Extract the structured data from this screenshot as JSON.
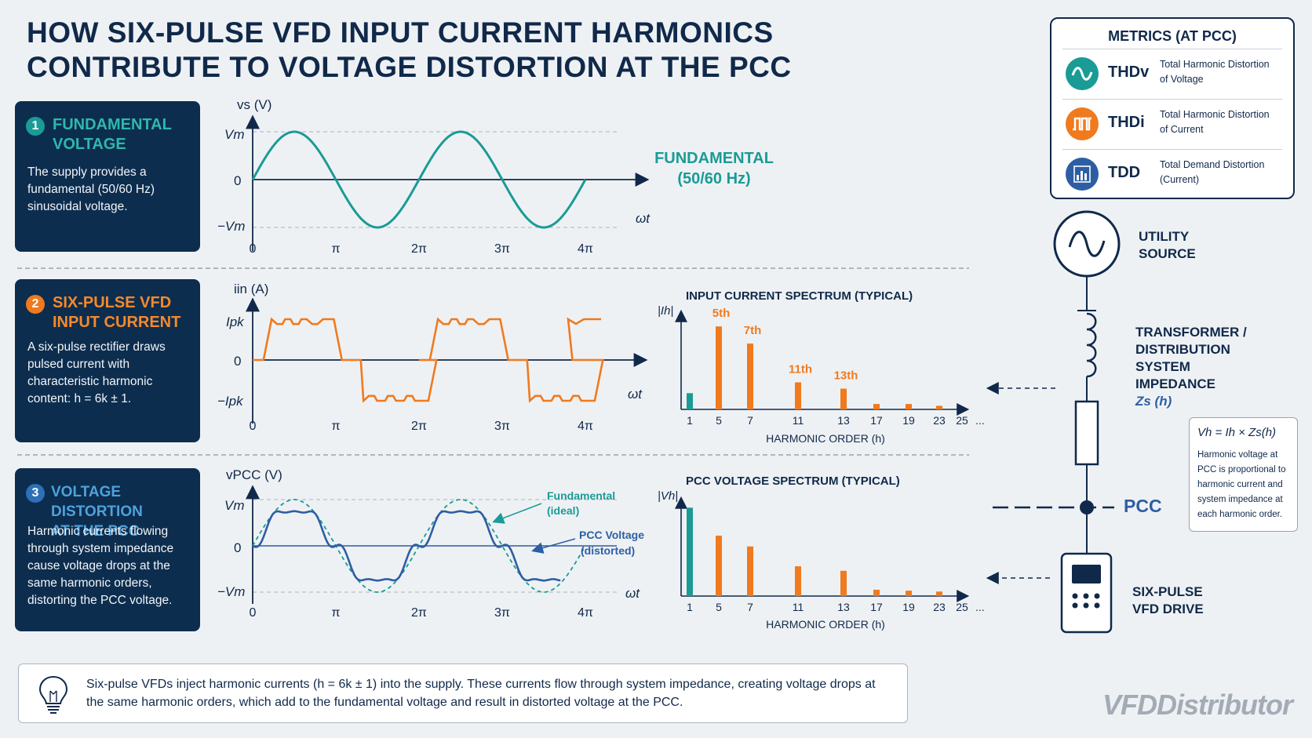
{
  "title_line1": "HOW SIX-PULSE VFD INPUT CURRENT HARMONICS",
  "title_line2": "CONTRIBUTE TO VOLTAGE DISTORTION AT THE PCC",
  "colors": {
    "navy": "#0d2d4e",
    "teal": "#1a9b95",
    "orange": "#f07a1e",
    "blue": "#2d5ea3"
  },
  "steps": [
    {
      "num": "1",
      "head1": "FUNDAMENTAL",
      "head2": "VOLTAGE",
      "body": "The supply provides a fundamental (50/60 Hz) sinusoidal voltage."
    },
    {
      "num": "2",
      "head1": "SIX-PULSE VFD",
      "head2": "INPUT CURRENT",
      "body": "A six-pulse rectifier draws pulsed current with characteristic harmonic content: h = 6k ± 1."
    },
    {
      "num": "3",
      "head1": "VOLTAGE DISTORTION",
      "head2": "AT THE PCC",
      "body": "Harmonic currents flowing through system impedance cause voltage drops at the same harmonic orders, distorting the PCC voltage."
    }
  ],
  "wave1": {
    "ylabel": "vs (V)",
    "top": "Vm",
    "zero": "0",
    "bottom": "−Vm",
    "xaxis": "ωt",
    "ticks": [
      "0",
      "π",
      "2π",
      "3π",
      "4π"
    ],
    "tag1": "FUNDAMENTAL",
    "tag2": "(50/60 Hz)"
  },
  "wave2": {
    "ylabel": "iin (A)",
    "top": "Ipk",
    "zero": "0",
    "bottom": "−Ipk",
    "xaxis": "ωt",
    "ticks": [
      "0",
      "π",
      "2π",
      "3π",
      "4π"
    ]
  },
  "wave3": {
    "ylabel": "vPCC (V)",
    "top": "Vm",
    "zero": "0",
    "bottom": "−Vm",
    "xaxis": "ωt",
    "ticks": [
      "0",
      "π",
      "2π",
      "3π",
      "4π"
    ],
    "legend_fund1": "Fundamental",
    "legend_fund2": "(ideal)",
    "legend_pcc1": "PCC Voltage",
    "legend_pcc2": "(distorted)"
  },
  "chart_data": [
    {
      "type": "bar",
      "title": "INPUT CURRENT SPECTRUM (TYPICAL)",
      "ylabel": "|Ih|",
      "xlabel": "HARMONIC ORDER (h)",
      "categories": [
        "1",
        "5",
        "7",
        "11",
        "13",
        "17",
        "19",
        "23",
        "25"
      ],
      "values": [
        0.18,
        0.92,
        0.73,
        0.3,
        0.23,
        0.06,
        0.06,
        0.04,
        0
      ],
      "bar_labels": [
        "",
        "5th",
        "7th",
        "11th",
        "13th",
        "",
        "",
        "",
        ""
      ],
      "colors": [
        "#1a9b95",
        "#f07a1e",
        "#f07a1e",
        "#f07a1e",
        "#f07a1e",
        "#f07a1e",
        "#f07a1e",
        "#f07a1e",
        "#f07a1e"
      ],
      "trailing": "..."
    },
    {
      "type": "bar",
      "title": "PCC VOLTAGE SPECTRUM (TYPICAL)",
      "ylabel": "|Vh|",
      "xlabel": "HARMONIC ORDER (h)",
      "categories": [
        "1",
        "5",
        "7",
        "11",
        "13",
        "17",
        "19",
        "23",
        "25"
      ],
      "values": [
        0.98,
        0.67,
        0.55,
        0.33,
        0.28,
        0.07,
        0.06,
        0.05,
        0
      ],
      "colors": [
        "#1a9b95",
        "#f07a1e",
        "#f07a1e",
        "#f07a1e",
        "#f07a1e",
        "#f07a1e",
        "#f07a1e",
        "#f07a1e",
        "#f07a1e"
      ],
      "trailing": "..."
    }
  ],
  "metrics": {
    "title": "METRICS (AT PCC)",
    "items": [
      {
        "name": "THDv",
        "desc1": "Total Harmonic Distortion",
        "desc2": "of Voltage",
        "icon": "sine-wave-icon",
        "color": "#1a9b95"
      },
      {
        "name": "THDi",
        "desc1": "Total Harmonic Distortion",
        "desc2": "of Current",
        "icon": "pulse-wave-icon",
        "color": "#f07a1e"
      },
      {
        "name": "TDD",
        "desc1": "Total Demand Distortion",
        "desc2": "(Current)",
        "icon": "bar-chart-icon",
        "color": "#2d5ea3"
      }
    ]
  },
  "diagram": {
    "source1": "UTILITY",
    "source2": "SOURCE",
    "tx1": "TRANSFORMER /",
    "tx2": "DISTRIBUTION",
    "tx3": "SYSTEM",
    "tx4": "IMPEDANCE",
    "tx5": "Zs (h)",
    "pcc": "PCC",
    "vfd1": "SIX-PULSE",
    "vfd2": "VFD DRIVE"
  },
  "note": {
    "formula": "Vh = Ih × Zs(h)",
    "text": "Harmonic voltage at PCC is proportional to harmonic current and system impedance at each harmonic order."
  },
  "bottom_text": "Six-pulse VFDs inject harmonic currents (h = 6k ± 1) into the supply. These currents flow through system impedance, creating voltage drops at the same harmonic orders, which add to the fundamental voltage and result in distorted voltage at the PCC.",
  "brand": "VFDDistributor"
}
